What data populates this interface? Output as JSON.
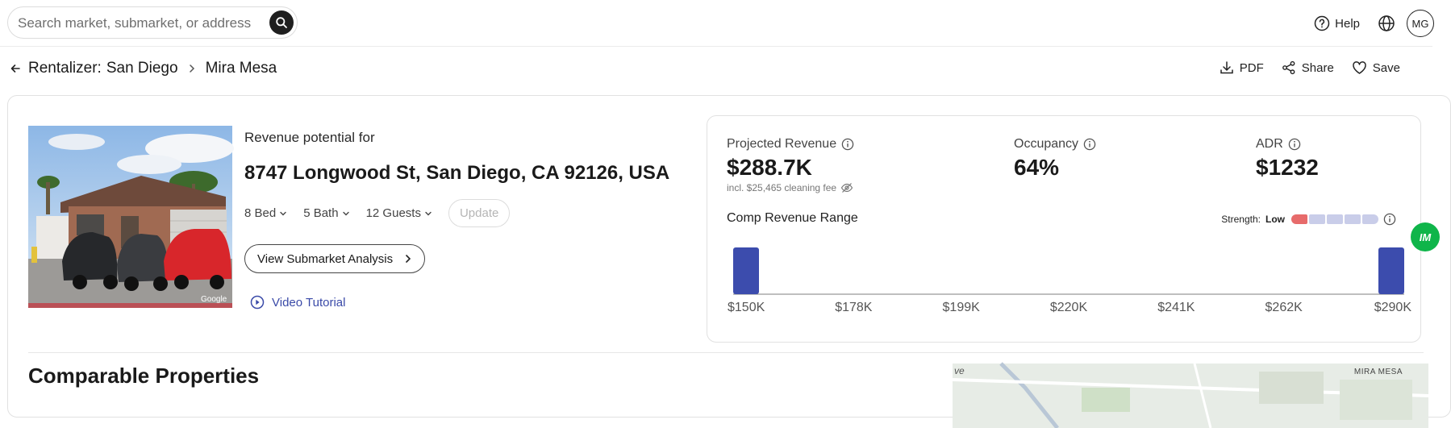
{
  "search": {
    "placeholder": "Search market, submarket, or address"
  },
  "header": {
    "help_label": "Help",
    "avatar_initials": "MG"
  },
  "breadcrumb": {
    "app": "Rentalizer:",
    "market": "San Diego",
    "submarket": "Mira Mesa"
  },
  "actions": {
    "pdf": "PDF",
    "share": "Share",
    "save": "Save"
  },
  "property": {
    "heading": "Revenue potential for",
    "address": "8747 Longwood St, San Diego, CA 92126, USA",
    "beds": "8 Bed",
    "baths": "5 Bath",
    "guests": "12 Guests",
    "update_label": "Update",
    "view_label": "View Submarket Analysis",
    "video_label": "Video Tutorial",
    "photo_watermark": "Google"
  },
  "metrics": {
    "revenue_label": "Projected Revenue",
    "revenue_value": "$288.7K",
    "revenue_sub": "incl. $25,465 cleaning fee",
    "occupancy_label": "Occupancy",
    "occupancy_value": "64%",
    "adr_label": "ADR",
    "adr_value": "$1232"
  },
  "strength": {
    "label": "Strength:",
    "value": "Low",
    "level": 1,
    "segments": 5
  },
  "chart_data": {
    "type": "bar",
    "title": "Comp Revenue Range",
    "categories": [
      "$150K",
      "$178K",
      "$199K",
      "$220K",
      "$241K",
      "$262K",
      "$290K"
    ],
    "series": [
      {
        "values": [
          1,
          0,
          0,
          0,
          0,
          0,
          1
        ]
      }
    ]
  },
  "colors": {
    "bar": "#3c4cad",
    "accent": "#3a4aa8",
    "strength_low": "#e76b6b",
    "strength_off": "#c9cde9"
  },
  "comparables": {
    "title": "Comparable Properties"
  },
  "map": {
    "area_label": "MIRA MESA",
    "fragment": "ve"
  },
  "floating": {
    "label": "IM"
  }
}
